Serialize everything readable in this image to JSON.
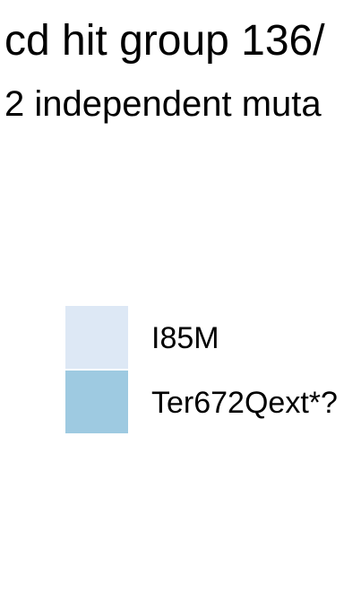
{
  "chart_data": {
    "type": "bar",
    "title": "cd hit group 136/",
    "subtitle": "2 independent muta",
    "legend": {
      "placement": "left",
      "entries": [
        {
          "label": "I85M",
          "color": "#dde8f5"
        },
        {
          "label": "Ter672Qext*?",
          "color": "#9ecae1"
        }
      ]
    },
    "series": [
      {
        "name": "I85M"
      },
      {
        "name": "Ter672Qext*?"
      }
    ]
  }
}
